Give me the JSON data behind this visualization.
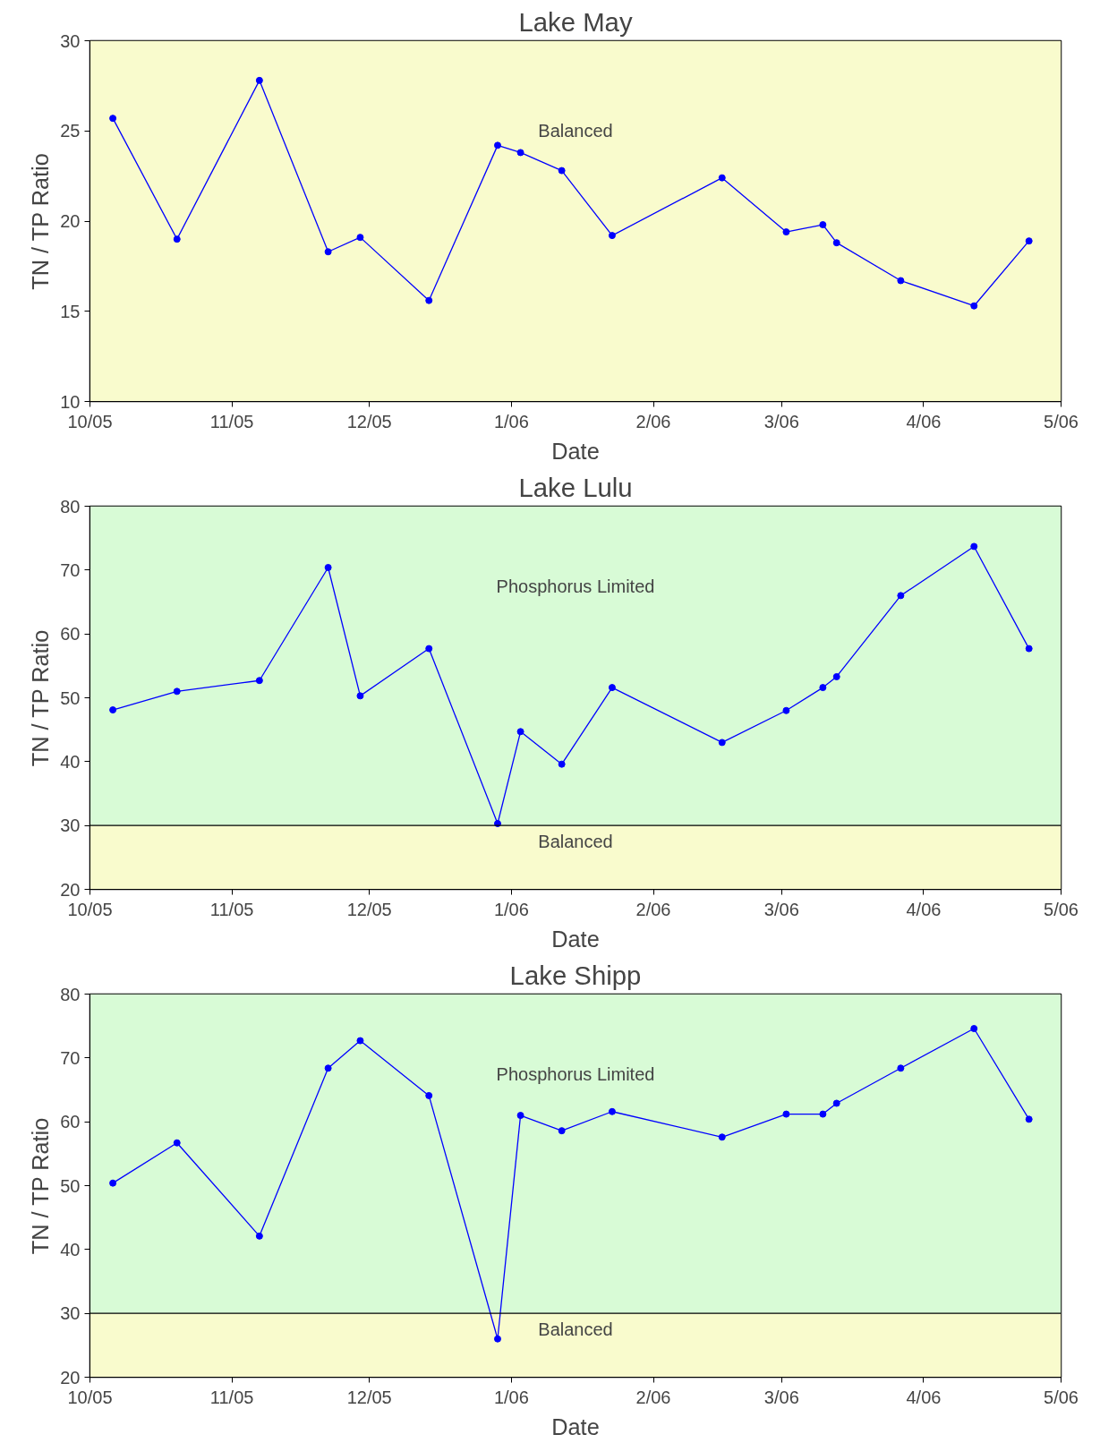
{
  "chart_data": [
    {
      "type": "line",
      "title": "Lake May",
      "xlabel": "Date",
      "ylabel": "TN / TP Ratio",
      "marker": "circle",
      "line_style": "solid",
      "grid": false,
      "x": [
        "2005-10-06",
        "2005-10-20",
        "2005-11-07",
        "2005-11-22",
        "2005-11-29",
        "2005-12-14",
        "2005-12-29",
        "2006-01-03",
        "2006-01-12",
        "2006-01-23",
        "2006-02-16",
        "2006-03-02",
        "2006-03-10",
        "2006-03-13",
        "2006-03-27",
        "2006-04-12",
        "2006-04-24"
      ],
      "series": [
        {
          "color": "#0000ff",
          "values": [
            25.7,
            19.0,
            27.8,
            18.3,
            19.1,
            15.6,
            24.2,
            23.8,
            22.8,
            19.2,
            22.4,
            19.4,
            19.8,
            18.8,
            16.7,
            15.3,
            18.9
          ]
        }
      ],
      "xlim": [
        "2005-10-01",
        "2006-05-01"
      ],
      "xticks": [
        {
          "value": "2005-10-01",
          "label": "10/05"
        },
        {
          "value": "2005-11-01",
          "label": "11/05"
        },
        {
          "value": "2005-12-01",
          "label": "12/05"
        },
        {
          "value": "2006-01-01",
          "label": "1/06"
        },
        {
          "value": "2006-02-01",
          "label": "2/06"
        },
        {
          "value": "2006-03-01",
          "label": "3/06"
        },
        {
          "value": "2006-04-01",
          "label": "4/06"
        },
        {
          "value": "2006-05-01",
          "label": "5/06"
        }
      ],
      "ylim": [
        10,
        30
      ],
      "yticks": [
        10,
        15,
        20,
        25,
        30
      ],
      "bands": [
        {
          "axis": "y",
          "from": 10,
          "to": 30,
          "label": "Balanced",
          "color": "#f9fbcd"
        }
      ]
    },
    {
      "type": "line",
      "title": "Lake Lulu",
      "xlabel": "Date",
      "ylabel": "TN / TP Ratio",
      "marker": "circle",
      "line_style": "solid",
      "grid": false,
      "x": [
        "2005-10-06",
        "2005-10-20",
        "2005-11-07",
        "2005-11-22",
        "2005-11-29",
        "2005-12-14",
        "2005-12-29",
        "2006-01-03",
        "2006-01-12",
        "2006-01-23",
        "2006-02-16",
        "2006-03-02",
        "2006-03-10",
        "2006-03-13",
        "2006-03-27",
        "2006-04-12",
        "2006-04-24"
      ],
      "series": [
        {
          "color": "#0000ff",
          "values": [
            48.1,
            51.0,
            52.7,
            70.4,
            50.3,
            57.7,
            30.3,
            44.7,
            39.6,
            51.6,
            43.0,
            48.0,
            51.6,
            53.3,
            66.0,
            73.7,
            57.7
          ]
        }
      ],
      "xlim": [
        "2005-10-01",
        "2006-05-01"
      ],
      "xticks": [
        {
          "value": "2005-10-01",
          "label": "10/05"
        },
        {
          "value": "2005-11-01",
          "label": "11/05"
        },
        {
          "value": "2005-12-01",
          "label": "12/05"
        },
        {
          "value": "2006-01-01",
          "label": "1/06"
        },
        {
          "value": "2006-02-01",
          "label": "2/06"
        },
        {
          "value": "2006-03-01",
          "label": "3/06"
        },
        {
          "value": "2006-04-01",
          "label": "4/06"
        },
        {
          "value": "2006-05-01",
          "label": "5/06"
        }
      ],
      "ylim": [
        20,
        80
      ],
      "yticks": [
        20,
        30,
        40,
        50,
        60,
        70,
        80
      ],
      "bands": [
        {
          "axis": "y",
          "from": 30,
          "to": 80,
          "label": "Phosphorus Limited",
          "color": "#d8fbd6"
        },
        {
          "axis": "y",
          "from": 20,
          "to": 30,
          "label": "Balanced",
          "color": "#f9fbcd"
        }
      ],
      "ref_lines": [
        {
          "axis": "y",
          "value": 30,
          "color": "#000000",
          "line_style": "solid"
        }
      ]
    },
    {
      "type": "line",
      "title": "Lake Shipp",
      "xlabel": "Date",
      "ylabel": "TN / TP Ratio",
      "marker": "circle",
      "line_style": "solid",
      "grid": false,
      "x": [
        "2005-10-06",
        "2005-10-20",
        "2005-11-07",
        "2005-11-22",
        "2005-11-29",
        "2005-12-14",
        "2005-12-29",
        "2006-01-03",
        "2006-01-12",
        "2006-01-23",
        "2006-02-16",
        "2006-03-02",
        "2006-03-10",
        "2006-03-13",
        "2006-03-27",
        "2006-04-12",
        "2006-04-24"
      ],
      "series": [
        {
          "color": "#0000ff",
          "values": [
            50.4,
            56.7,
            42.1,
            68.4,
            72.7,
            64.1,
            26.0,
            61.0,
            58.6,
            61.6,
            57.6,
            61.2,
            61.2,
            62.9,
            68.4,
            74.6,
            60.4
          ]
        }
      ],
      "xlim": [
        "2005-10-01",
        "2006-05-01"
      ],
      "xticks": [
        {
          "value": "2005-10-01",
          "label": "10/05"
        },
        {
          "value": "2005-11-01",
          "label": "11/05"
        },
        {
          "value": "2005-12-01",
          "label": "12/05"
        },
        {
          "value": "2006-01-01",
          "label": "1/06"
        },
        {
          "value": "2006-02-01",
          "label": "2/06"
        },
        {
          "value": "2006-03-01",
          "label": "3/06"
        },
        {
          "value": "2006-04-01",
          "label": "4/06"
        },
        {
          "value": "2006-05-01",
          "label": "5/06"
        }
      ],
      "ylim": [
        20,
        80
      ],
      "yticks": [
        20,
        30,
        40,
        50,
        60,
        70,
        80
      ],
      "bands": [
        {
          "axis": "y",
          "from": 30,
          "to": 80,
          "label": "Phosphorus Limited",
          "color": "#d8fbd6"
        },
        {
          "axis": "y",
          "from": 20,
          "to": 30,
          "label": "Balanced",
          "color": "#f9fbcd"
        }
      ],
      "ref_lines": [
        {
          "axis": "y",
          "value": 30,
          "color": "#000000",
          "line_style": "solid"
        }
      ]
    }
  ]
}
